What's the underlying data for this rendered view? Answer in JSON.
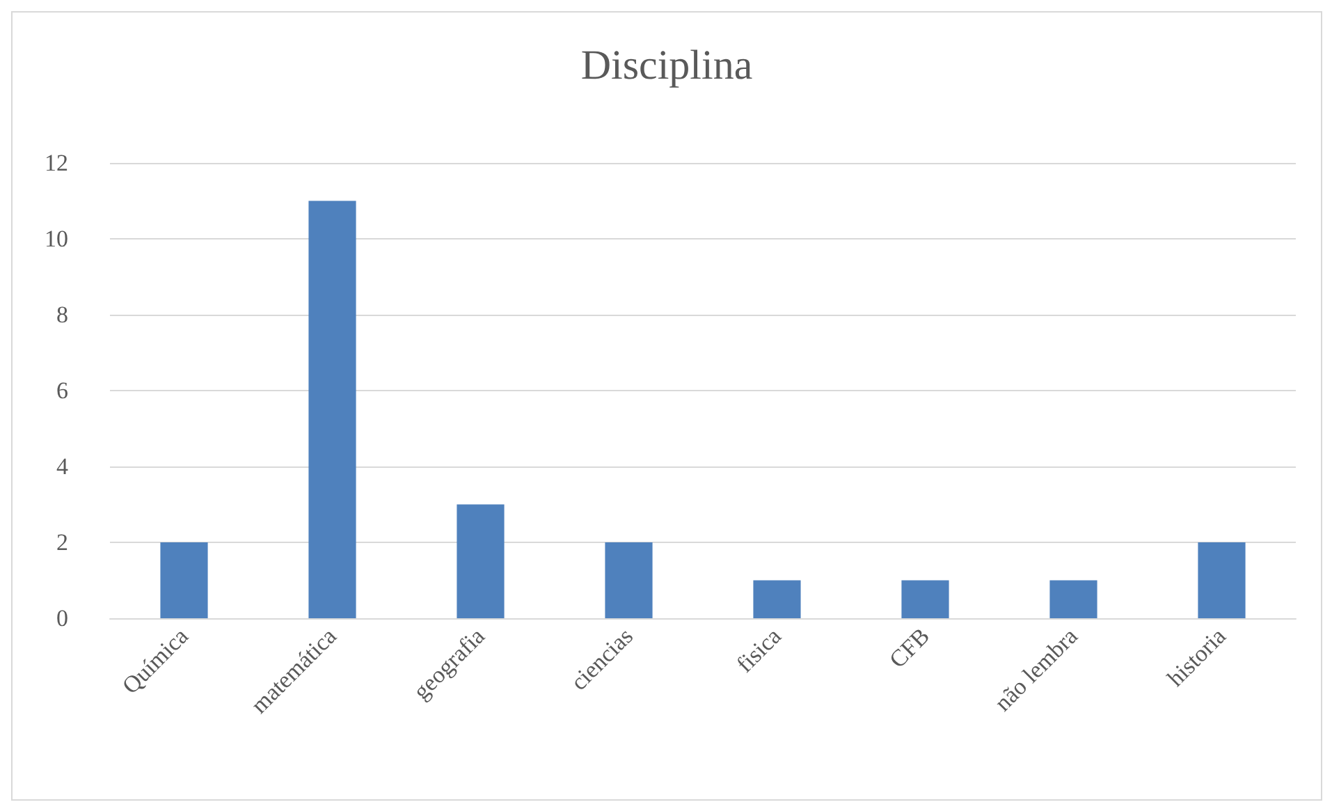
{
  "chart_data": {
    "type": "bar",
    "title": "Disciplina",
    "categories": [
      "Química",
      "matemática",
      "geografia",
      "ciencias",
      "fisica",
      "CFB",
      "não lembra",
      "historia"
    ],
    "values": [
      2,
      11,
      3,
      2,
      1,
      1,
      1,
      2
    ],
    "color": "#4f81bd",
    "ylim": [
      0,
      12
    ],
    "yticks": [
      0,
      2,
      4,
      6,
      8,
      10,
      12
    ],
    "grid": "y",
    "legend": false
  }
}
